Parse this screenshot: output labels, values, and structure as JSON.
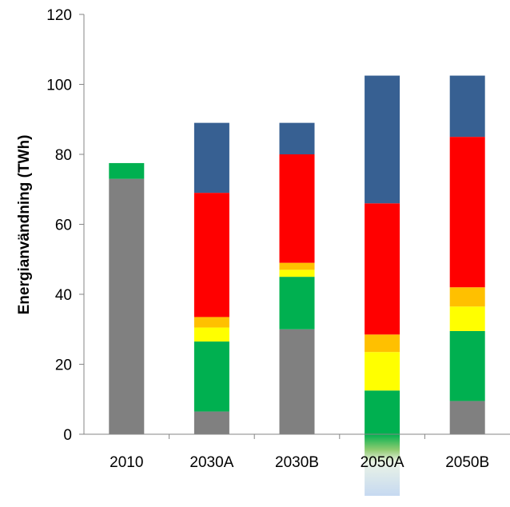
{
  "chart_data": {
    "type": "bar",
    "stacked": true,
    "title": "",
    "xlabel": "",
    "ylabel": "Energianvändning (TWh)",
    "ylim": [
      0,
      120
    ],
    "yticks": [
      0,
      20,
      40,
      60,
      80,
      100,
      120
    ],
    "grid": false,
    "legend": "none",
    "categories": [
      "2010",
      "2030A",
      "2030B",
      "2050A",
      "2050B"
    ],
    "series": [
      {
        "color": "#808080",
        "values": [
          73,
          6.5,
          30,
          0,
          9.5
        ]
      },
      {
        "color": "#00B050",
        "values": [
          4.5,
          20,
          15,
          12.5,
          20
        ]
      },
      {
        "color": "#FFFF00",
        "values": [
          0,
          4,
          2,
          11,
          7
        ]
      },
      {
        "color": "#FFC000",
        "values": [
          0,
          3,
          2,
          5,
          5.5
        ]
      },
      {
        "color": "#FF0000",
        "values": [
          0,
          35.5,
          31,
          37.5,
          43
        ]
      },
      {
        "color": "#376092",
        "values": [
          0,
          20,
          9,
          36.5,
          17.5
        ]
      }
    ],
    "below_axis_overflow": {
      "category": "2050A",
      "colors": [
        "#00B050",
        "#C6D9F1"
      ]
    }
  }
}
